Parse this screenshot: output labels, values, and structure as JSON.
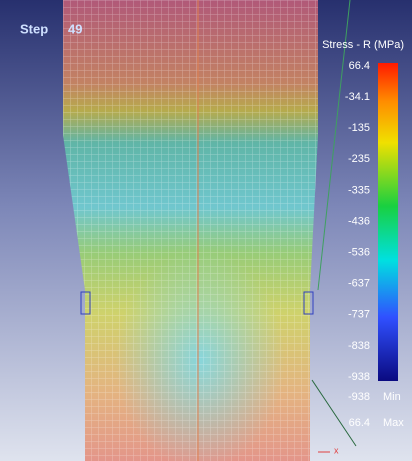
{
  "step": {
    "label": "Step",
    "number": "49"
  },
  "legend": {
    "title": "Stress - R (MPa)",
    "ticks": [
      "66.4",
      "-34.1",
      "-135",
      "-235",
      "-335",
      "-436",
      "-536",
      "-637",
      "-737",
      "-838",
      "-938"
    ],
    "min": {
      "value": "-938",
      "label": "Min"
    },
    "max": {
      "value": "66.4",
      "label": "Max"
    }
  },
  "axis": {
    "x": "x"
  }
}
